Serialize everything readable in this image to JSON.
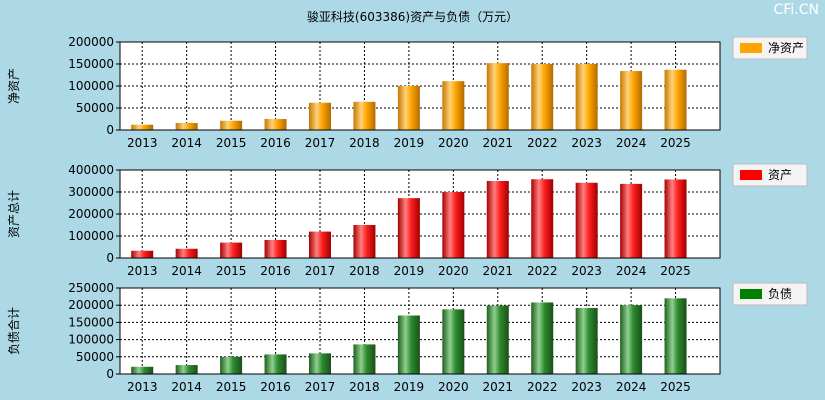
{
  "title": "骏亚科技(603386)资产与负债（万元）",
  "watermark": "CFi.CN",
  "chart_data": [
    {
      "type": "bar",
      "ylabel": "净资产",
      "legend": "净资产",
      "color": "#ffa500",
      "categories": [
        "2013",
        "2014",
        "2015",
        "2016",
        "2017",
        "2018",
        "2019",
        "2020",
        "2021",
        "2022",
        "2023",
        "2024",
        "2025"
      ],
      "values": [
        12000,
        16000,
        21000,
        25000,
        62000,
        64000,
        100000,
        111000,
        152000,
        150000,
        150000,
        134000,
        137000
      ],
      "ylim": [
        0,
        200000
      ],
      "yticks": [
        "200000",
        "150000",
        "100000",
        "50000",
        "0"
      ]
    },
    {
      "type": "bar",
      "ylabel": "资产总计",
      "legend": "资产",
      "color": "#ff0000",
      "categories": [
        "2013",
        "2014",
        "2015",
        "2016",
        "2017",
        "2018",
        "2019",
        "2020",
        "2021",
        "2022",
        "2023",
        "2024",
        "2025"
      ],
      "values": [
        33000,
        42000,
        70000,
        82000,
        120000,
        150000,
        272000,
        300000,
        350000,
        358000,
        342000,
        337000,
        357000
      ],
      "ylim": [
        0,
        400000
      ],
      "yticks": [
        "400000",
        "300000",
        "200000",
        "100000",
        "0"
      ]
    },
    {
      "type": "bar",
      "ylabel": "负债合计",
      "legend": "负债",
      "color": "#008000",
      "categories": [
        "2013",
        "2014",
        "2015",
        "2016",
        "2017",
        "2018",
        "2019",
        "2020",
        "2021",
        "2022",
        "2023",
        "2024",
        "2025"
      ],
      "values": [
        21000,
        26000,
        50000,
        57000,
        60000,
        86000,
        170000,
        188000,
        199000,
        208000,
        192000,
        200000,
        220000
      ],
      "ylim": [
        0,
        250000
      ],
      "yticks": [
        "250000",
        "200000",
        "150000",
        "100000",
        "50000",
        "0"
      ]
    }
  ]
}
